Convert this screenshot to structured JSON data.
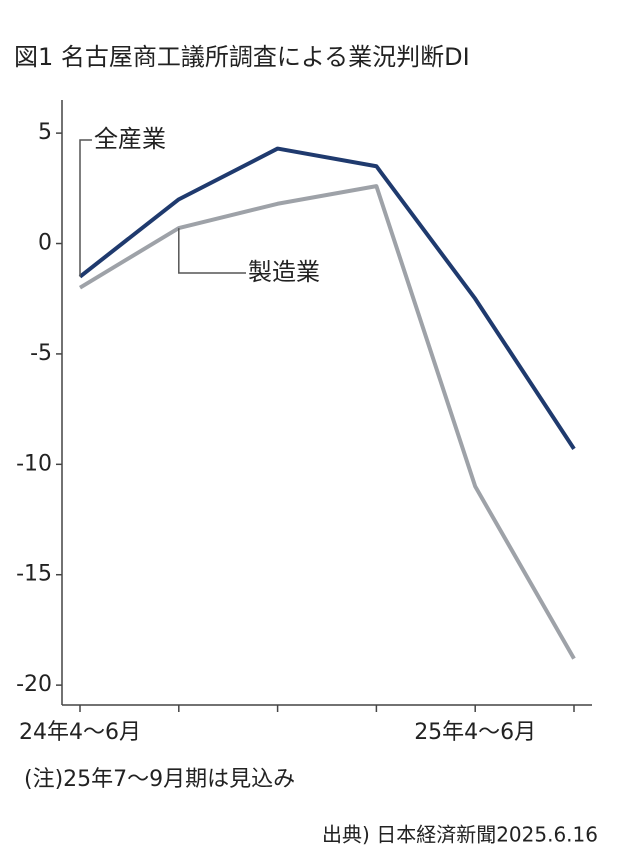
{
  "chart_data": {
    "type": "line",
    "title": "図1 名古屋商工議所調査による業況判断DI",
    "categories": [
      "24年4～6月",
      null,
      null,
      null,
      "25年4～6月",
      null
    ],
    "series": [
      {
        "name": "全産業",
        "color": "#1f3a6e",
        "values": [
          -1.5,
          2.0,
          4.3,
          3.5,
          -2.5,
          -9.3
        ]
      },
      {
        "name": "製造業",
        "color": "#9ea2a8",
        "values": [
          -2.0,
          0.7,
          1.8,
          2.6,
          -11.0,
          -18.8
        ]
      }
    ],
    "ylim": [
      -20.9,
      6.5
    ],
    "yticks": [
      5,
      0,
      -5,
      -10,
      -15,
      -20
    ],
    "note": "(注)25年7～9月期は見込み",
    "source": "出典) 日本経済新聞2025.6.16"
  }
}
